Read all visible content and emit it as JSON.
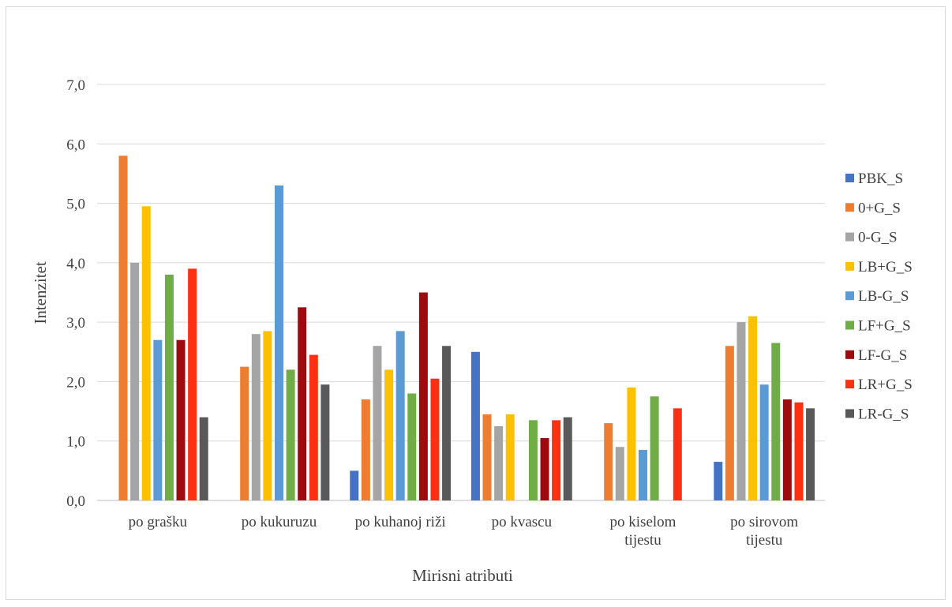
{
  "chart_data": {
    "type": "bar",
    "title": "",
    "xlabel": "Mirisni atributi",
    "ylabel": "Intenzitet",
    "ylim": [
      0,
      7
    ],
    "yticks": [
      "0,0",
      "1,0",
      "2,0",
      "3,0",
      "4,0",
      "5,0",
      "6,0",
      "7,0"
    ],
    "grid": true,
    "legend_position": "right",
    "categories": [
      [
        "po grašku"
      ],
      [
        "po kukuruzu"
      ],
      [
        "po kuhanoj riži"
      ],
      [
        "po kvascu"
      ],
      [
        "po kiselom",
        "tijestu"
      ],
      [
        "po sirovom",
        "tijestu"
      ]
    ],
    "series": [
      {
        "name": "PBK_S",
        "color": "#4472c4",
        "values": [
          0,
          0,
          0.5,
          2.5,
          0,
          0.65
        ]
      },
      {
        "name": "0+G_S",
        "color": "#ed7d31",
        "values": [
          5.8,
          2.25,
          1.7,
          1.45,
          1.3,
          2.6
        ]
      },
      {
        "name": "0-G_S",
        "color": "#a5a5a5",
        "values": [
          4.0,
          2.8,
          2.6,
          1.25,
          0.9,
          3.0
        ]
      },
      {
        "name": "LB+G_S",
        "color": "#ffc000",
        "values": [
          4.95,
          2.85,
          2.2,
          1.45,
          1.9,
          3.1
        ]
      },
      {
        "name": "LB-G_S",
        "color": "#5b9bd5",
        "values": [
          2.7,
          5.3,
          2.85,
          0,
          0.85,
          1.95
        ]
      },
      {
        "name": "LF+G_S",
        "color": "#70ad47",
        "values": [
          3.8,
          2.2,
          1.8,
          1.35,
          1.75,
          2.65
        ]
      },
      {
        "name": "LF-G_S",
        "color": "#9e0b0f",
        "values": [
          2.7,
          3.25,
          3.5,
          1.05,
          0,
          1.7
        ]
      },
      {
        "name": "LR+G_S",
        "color": "#ff3011",
        "values": [
          3.9,
          2.45,
          2.05,
          1.35,
          1.55,
          1.65
        ]
      },
      {
        "name": "LR-G_S",
        "color": "#595959",
        "values": [
          1.4,
          1.95,
          2.6,
          1.4,
          0,
          1.55
        ]
      }
    ]
  }
}
